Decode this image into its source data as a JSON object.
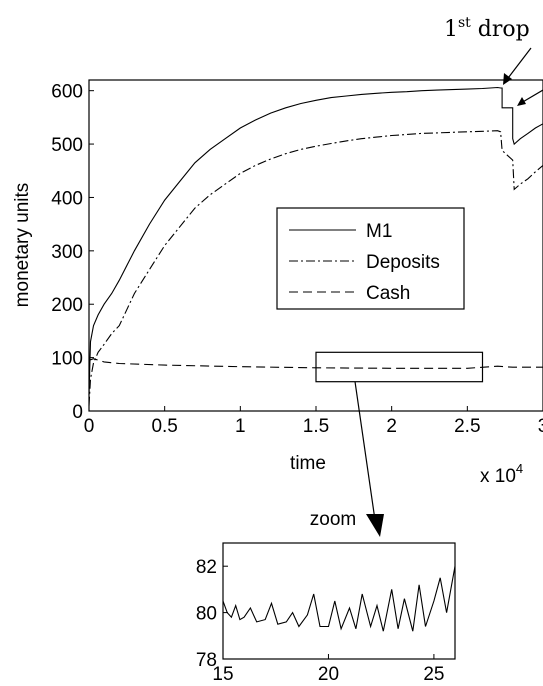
{
  "chart_data": [
    {
      "type": "line",
      "title": "",
      "xlabel": "time",
      "ylabel": "monetary units",
      "x_multiplier_label": "x 10",
      "x_multiplier_exp": "4",
      "xlim": [
        0,
        3
      ],
      "ylim": [
        0,
        620
      ],
      "x_ticks": [
        0,
        0.5,
        1,
        1.5,
        2,
        2.5,
        3
      ],
      "x_tick_labels": [
        "0",
        "0.5",
        "1",
        "1.5",
        "2",
        "2.5",
        "3"
      ],
      "y_ticks": [
        0,
        100,
        200,
        300,
        400,
        500,
        600
      ],
      "y_tick_labels": [
        "0",
        "100",
        "200",
        "300",
        "400",
        "500",
        "600"
      ],
      "grid": false,
      "legend_position": "center-right",
      "series": [
        {
          "name": "M1",
          "style": "solid",
          "x": [
            0,
            0.01,
            0.03,
            0.06,
            0.1,
            0.15,
            0.2,
            0.3,
            0.4,
            0.5,
            0.6,
            0.7,
            0.8,
            0.9,
            1.0,
            1.1,
            1.2,
            1.3,
            1.4,
            1.5,
            1.6,
            1.7,
            1.8,
            1.9,
            2.0,
            2.1,
            2.2,
            2.3,
            2.4,
            2.5,
            2.6,
            2.7,
            2.72,
            2.73,
            2.73,
            2.8,
            2.8,
            2.81,
            2.85,
            2.9,
            2.95,
            3.0
          ],
          "values": [
            30,
            130,
            160,
            180,
            200,
            220,
            245,
            300,
            350,
            395,
            430,
            465,
            490,
            510,
            530,
            545,
            558,
            568,
            576,
            582,
            587,
            590,
            593,
            595,
            597,
            598,
            600,
            601,
            602,
            603,
            604,
            606,
            605,
            605,
            568,
            568,
            510,
            500,
            510,
            520,
            530,
            538
          ]
        },
        {
          "name": "Deposits",
          "style": "dashdot",
          "x": [
            0,
            0.01,
            0.03,
            0.06,
            0.1,
            0.15,
            0.2,
            0.3,
            0.4,
            0.5,
            0.6,
            0.7,
            0.8,
            0.9,
            1.0,
            1.1,
            1.2,
            1.3,
            1.4,
            1.5,
            1.6,
            1.7,
            1.8,
            1.9,
            2.0,
            2.1,
            2.2,
            2.3,
            2.4,
            2.5,
            2.6,
            2.7,
            2.72,
            2.73,
            2.8,
            2.81,
            2.85,
            2.9,
            2.95,
            3.0
          ],
          "values": [
            10,
            60,
            90,
            110,
            125,
            145,
            160,
            220,
            265,
            310,
            345,
            380,
            405,
            425,
            445,
            460,
            472,
            482,
            490,
            496,
            501,
            506,
            510,
            513,
            516,
            518,
            520,
            521,
            522,
            523,
            524,
            525,
            523,
            488,
            470,
            415,
            425,
            435,
            448,
            460
          ]
        },
        {
          "name": "Cash",
          "style": "dashed",
          "x": [
            0,
            0.03,
            0.1,
            0.2,
            0.5,
            1.0,
            1.5,
            2.0,
            2.5,
            2.7,
            2.8,
            3.0
          ],
          "values": [
            95,
            98,
            92,
            89,
            86,
            83,
            81,
            80,
            80,
            84,
            82,
            82
          ]
        }
      ],
      "annotations": [
        {
          "text_base": "1",
          "text_sup": "st",
          "text_rest": " drop"
        }
      ]
    },
    {
      "type": "line",
      "title": "zoom",
      "xlabel": "",
      "ylabel": "",
      "xlim": [
        15,
        26
      ],
      "ylim": [
        78,
        83
      ],
      "x_ticks": [
        15,
        20,
        25
      ],
      "x_tick_labels": [
        "15",
        "20",
        "25"
      ],
      "y_ticks": [
        78,
        80,
        82
      ],
      "y_tick_labels": [
        "78",
        "80",
        "82"
      ],
      "grid": false,
      "series": [
        {
          "name": "Cash",
          "style": "solid",
          "x": [
            15,
            15.2,
            15.4,
            15.6,
            15.8,
            16,
            16.3,
            16.6,
            17,
            17.3,
            17.6,
            18,
            18.3,
            18.6,
            19,
            19.3,
            19.6,
            20,
            20.3,
            20.6,
            21,
            21.3,
            21.6,
            22,
            22.3,
            22.6,
            23,
            23.3,
            23.6,
            24,
            24.3,
            24.6,
            25,
            25.3,
            25.6,
            26
          ],
          "values": [
            80.5,
            80.0,
            79.8,
            80.3,
            79.7,
            79.8,
            80.2,
            79.6,
            79.7,
            80.4,
            79.5,
            79.6,
            80.0,
            79.4,
            79.9,
            80.8,
            79.4,
            79.4,
            80.5,
            79.3,
            80.2,
            79.3,
            80.8,
            79.4,
            80.3,
            79.2,
            81.0,
            79.3,
            80.6,
            79.2,
            81.2,
            79.4,
            80.5,
            81.5,
            80.0,
            82.0
          ]
        }
      ]
    }
  ]
}
